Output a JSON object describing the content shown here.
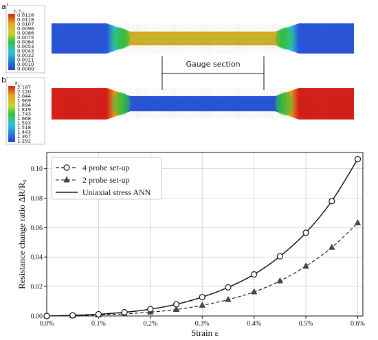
{
  "panels": {
    "a": {
      "letter": "a)",
      "colorbar_title": "ε, ε₁₁",
      "colorbar_labels": [
        "0.0128",
        "0.0118",
        "0.0107",
        "0.0096",
        "0.0086",
        "0.0075",
        "0.0064",
        "0.0053",
        "0.0043",
        "0.0032",
        "0.0021",
        "0.0010",
        "0.0000"
      ]
    },
    "b": {
      "letter": "b)",
      "colorbar_title": "κ₁₁",
      "colorbar_labels": [
        "2.187",
        "2.120",
        "2.044",
        "1.969",
        "1.894",
        "1.819",
        "1.743",
        "1.668",
        "1.593",
        "1.518",
        "1.443",
        "1.367",
        "1.292"
      ]
    },
    "gauge_label": "Gauge section"
  },
  "colors": {
    "red": "#d8201a",
    "orange": "#e8a21e",
    "yellow": "#c9b82a",
    "green": "#33c23f",
    "cyan": "#2bc7d9",
    "blue": "#2a56d9"
  },
  "chart_data": {
    "type": "line",
    "xlabel": "Strain ε",
    "ylabel": "Resistance change ratio ΔR/R₀",
    "xlim": [
      0,
      0.61
    ],
    "ylim": [
      0,
      0.111
    ],
    "x_tick_values": [
      0,
      0.1,
      0.2,
      0.3,
      0.4,
      0.5,
      0.6
    ],
    "x_tick_labels": [
      "0.0%",
      "0.1%",
      "0.2%",
      "0.3%",
      "0.4%",
      "0.5%",
      "0.6%"
    ],
    "y_tick_values": [
      0,
      0.02,
      0.04,
      0.06,
      0.08,
      0.1
    ],
    "y_tick_labels": [
      "0.00",
      "0.02",
      "0.04",
      "0.06",
      "0.08",
      "0.10"
    ],
    "grid": true,
    "legend_position": "top-left",
    "series": [
      {
        "name": "4 probe set-up",
        "style": "dashed-circle",
        "x": [
          0,
          0.05,
          0.1,
          0.15,
          0.2,
          0.25,
          0.3,
          0.35,
          0.4,
          0.45,
          0.5,
          0.55,
          0.6
        ],
        "y": [
          0,
          0.0004,
          0.0012,
          0.0025,
          0.0046,
          0.0079,
          0.0128,
          0.0194,
          0.0282,
          0.0405,
          0.0565,
          0.078,
          0.1065
        ]
      },
      {
        "name": "2 probe set-up",
        "style": "dashed-triangle",
        "x": [
          0,
          0.05,
          0.1,
          0.15,
          0.2,
          0.25,
          0.3,
          0.35,
          0.4,
          0.45,
          0.5,
          0.55,
          0.6
        ],
        "y": [
          0,
          0.0002,
          0.0007,
          0.0014,
          0.0026,
          0.0044,
          0.0072,
          0.0111,
          0.0163,
          0.0238,
          0.0338,
          0.0465,
          0.0632
        ]
      },
      {
        "name": "Uniaxial stress ANN",
        "style": "solid",
        "x": [
          0,
          0.05,
          0.1,
          0.15,
          0.2,
          0.25,
          0.3,
          0.35,
          0.4,
          0.45,
          0.5,
          0.55,
          0.6
        ],
        "y": [
          0,
          0.0004,
          0.0012,
          0.0025,
          0.0046,
          0.0079,
          0.0128,
          0.0194,
          0.0282,
          0.0405,
          0.0565,
          0.078,
          0.1065
        ]
      }
    ]
  }
}
